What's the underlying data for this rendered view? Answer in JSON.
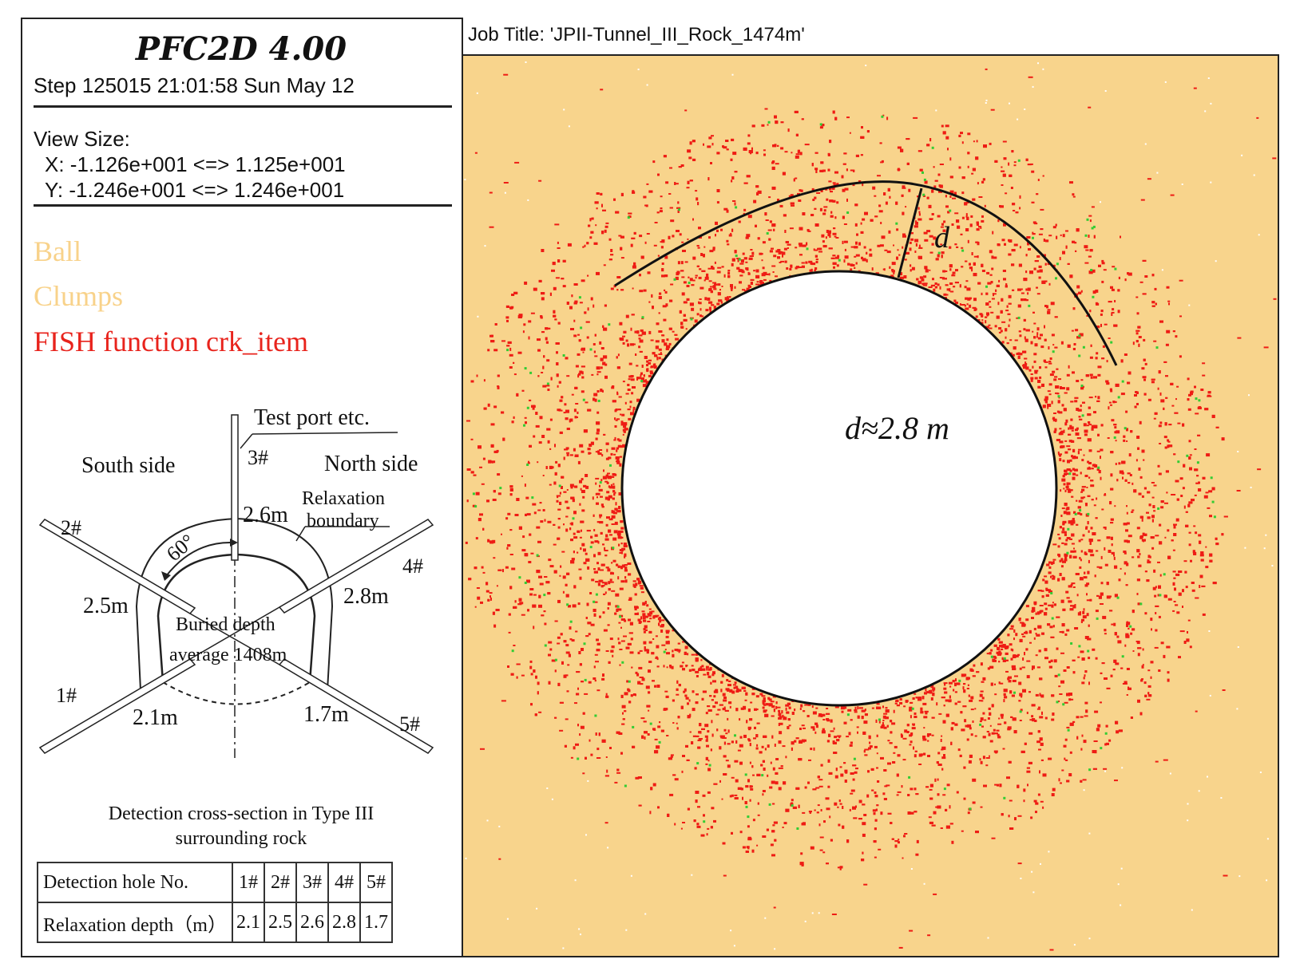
{
  "header": {
    "app_title": "PFC2D 4.00",
    "step_info": "Step 125015  21:01:58 Sun May 12"
  },
  "view_size": {
    "label": "View Size:",
    "x": "X: -1.126e+001 <=> 1.125e+001",
    "y": "Y: -1.246e+001 <=> 1.246e+001"
  },
  "legend": [
    {
      "label": "Ball",
      "color": "#f8d28a"
    },
    {
      "label": "Clumps",
      "color": "#f8d28a"
    },
    {
      "label": "FISH function crk_item",
      "color": "#e8231c"
    }
  ],
  "job_title": "Job Title: 'JPII-Tunnel_III_Rock_1474m'",
  "plot": {
    "background_color": "#f8d48c",
    "crack_color": "#ee1c14",
    "minor_color": "#33cc33",
    "d_label": "d",
    "d_value_label": "d≈2.8 m"
  },
  "schematic": {
    "test_port": "Test port  etc.",
    "south_side": "South side",
    "north_side": "North side",
    "relaxation_boundary_line1": "Relaxation",
    "relaxation_boundary_line2": "boundary",
    "angle": "60°",
    "buried_depth_line1": "Buried depth",
    "buried_depth_line2": "average 1408m",
    "holes": [
      {
        "id": "1#",
        "depth": "2.1m"
      },
      {
        "id": "2#",
        "depth": "2.5m"
      },
      {
        "id": "3#",
        "depth": "2.6m"
      },
      {
        "id": "4#",
        "depth": "2.8m"
      },
      {
        "id": "5#",
        "depth": "1.7m"
      }
    ],
    "caption_line1": "Detection cross-section  in Type III",
    "caption_line2": "surrounding rock"
  },
  "table": {
    "row1_label": "Detection hole No.",
    "row2_label": "Relaxation depth（m）",
    "holes": [
      "1#",
      "2#",
      "3#",
      "4#",
      "5#"
    ],
    "depths": [
      "2.1",
      "2.5",
      "2.6",
      "2.8",
      "1.7"
    ]
  }
}
